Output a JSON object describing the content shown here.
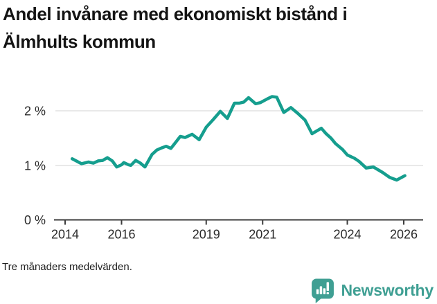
{
  "header": {
    "title": "Andel invånare med ekonomiskt bistånd i Älmhults kommun"
  },
  "chart_data": {
    "type": "line",
    "title": "Andel invånare med ekonomiskt bistånd i Älmhults kommun",
    "xlabel": "",
    "ylabel": "",
    "unit": "%",
    "x": [
      2014.25,
      2014.58,
      2014.83,
      2015.0,
      2015.17,
      2015.33,
      2015.5,
      2015.67,
      2015.83,
      2016.0,
      2016.08,
      2016.25,
      2016.33,
      2016.5,
      2016.67,
      2016.83,
      2017.08,
      2017.25,
      2017.42,
      2017.58,
      2017.75,
      2018.08,
      2018.25,
      2018.5,
      2018.75,
      2019.0,
      2019.25,
      2019.5,
      2019.75,
      2020.0,
      2020.17,
      2020.33,
      2020.5,
      2020.75,
      2020.92,
      2021.17,
      2021.33,
      2021.5,
      2021.75,
      2022.0,
      2022.25,
      2022.5,
      2022.75,
      2023.08,
      2023.25,
      2023.42,
      2023.58,
      2023.83,
      2024.0,
      2024.25,
      2024.42,
      2024.67,
      2024.92,
      2025.25,
      2025.5,
      2025.75,
      2026.04
    ],
    "values": [
      1.12,
      1.03,
      1.06,
      1.04,
      1.08,
      1.09,
      1.14,
      1.08,
      0.97,
      1.01,
      1.05,
      1.01,
      1.0,
      1.09,
      1.04,
      0.97,
      1.2,
      1.28,
      1.32,
      1.35,
      1.31,
      1.53,
      1.51,
      1.57,
      1.47,
      1.7,
      1.84,
      1.99,
      1.86,
      2.14,
      2.14,
      2.16,
      2.24,
      2.13,
      2.15,
      2.22,
      2.26,
      2.25,
      1.97,
      2.06,
      1.95,
      1.83,
      1.58,
      1.68,
      1.58,
      1.5,
      1.4,
      1.29,
      1.19,
      1.13,
      1.07,
      0.95,
      0.97,
      0.87,
      0.78,
      0.73,
      0.81
    ],
    "xticks": {
      "values": [
        2014,
        2016,
        2019,
        2021,
        2024,
        2026
      ],
      "labels": [
        "2014",
        "2016",
        "2019",
        "2021",
        "2024",
        "2026"
      ]
    },
    "yticks": {
      "values": [
        0,
        1,
        2
      ],
      "labels": [
        "0 %",
        "1 %",
        "2 %"
      ]
    },
    "xlim": [
      2013.65,
      2026.7
    ],
    "ylim": [
      0,
      2.38
    ],
    "grid": "horizontal",
    "legend": "none",
    "line_color": "#159e8e",
    "gridline_color": "#e2e2e2",
    "axis_color": "#3d3d3d",
    "tick_label_color": "#2b2b2b"
  },
  "footer": {
    "note": "Tre månaders medelvärden."
  },
  "logo": {
    "text": "Newsworthy",
    "color": "#3f9f93",
    "icon": "bar-chart-speech-bubble"
  }
}
